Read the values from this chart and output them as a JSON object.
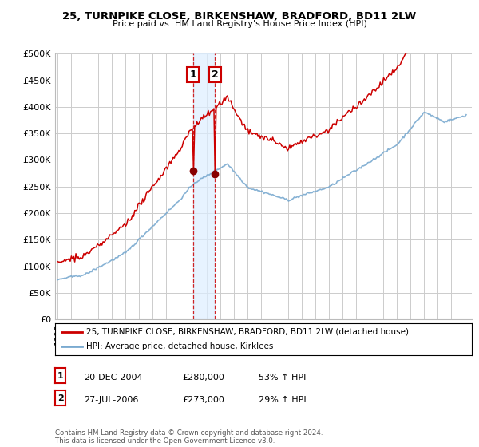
{
  "title": "25, TURNPIKE CLOSE, BIRKENSHAW, BRADFORD, BD11 2LW",
  "subtitle": "Price paid vs. HM Land Registry's House Price Index (HPI)",
  "ylim": [
    0,
    500000
  ],
  "yticks": [
    0,
    50000,
    100000,
    150000,
    200000,
    250000,
    300000,
    350000,
    400000,
    450000,
    500000
  ],
  "ytick_labels": [
    "£0",
    "£50K",
    "£100K",
    "£150K",
    "£200K",
    "£250K",
    "£300K",
    "£350K",
    "£400K",
    "£450K",
    "£500K"
  ],
  "xlim_start": 1994.8,
  "xlim_end": 2025.5,
  "line1_color": "#cc0000",
  "line2_color": "#7aaad0",
  "marker_color": "#880000",
  "vline_color": "#cc0000",
  "vline_fill": "#ddeeff",
  "legend_line1": "25, TURNPIKE CLOSE, BIRKENSHAW, BRADFORD, BD11 2LW (detached house)",
  "legend_line2": "HPI: Average price, detached house, Kirklees",
  "transaction1_label": "1",
  "transaction1_date": "20-DEC-2004",
  "transaction1_price": "£280,000",
  "transaction1_hpi": "53% ↑ HPI",
  "transaction1_year": 2004.97,
  "transaction2_label": "2",
  "transaction2_date": "27-JUL-2006",
  "transaction2_price": "£273,000",
  "transaction2_hpi": "29% ↑ HPI",
  "transaction2_year": 2006.58,
  "footnote": "Contains HM Land Registry data © Crown copyright and database right 2024.\nThis data is licensed under the Open Government Licence v3.0.",
  "bg_color": "#ffffff",
  "plot_bg_color": "#ffffff",
  "grid_color": "#cccccc"
}
